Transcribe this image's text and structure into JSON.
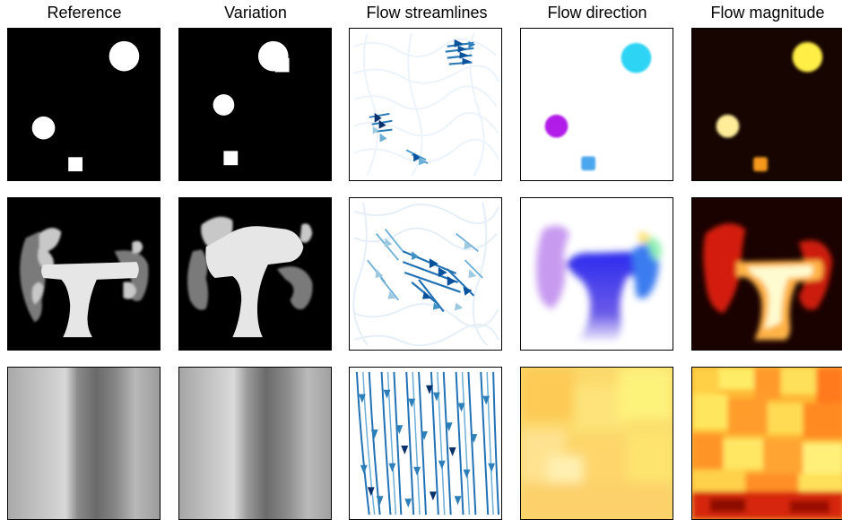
{
  "column_titles": [
    "Reference",
    "Variation",
    "Flow streamlines",
    "Flow direction",
    "Flow magnitude"
  ],
  "rows": [
    {
      "name": "circles-and-square"
    },
    {
      "name": "smoke-plume"
    },
    {
      "name": "vertical-bands"
    }
  ],
  "colors": {
    "streamline_light": "#c6dbef",
    "streamline_dark": "#08519c",
    "direction_cyan": "#2fd4f4",
    "direction_purple": "#b21ee8",
    "direction_blue": "#4ea7ee",
    "magnitude_yellow": "#ffee55",
    "magnitude_dark": "#160500"
  }
}
